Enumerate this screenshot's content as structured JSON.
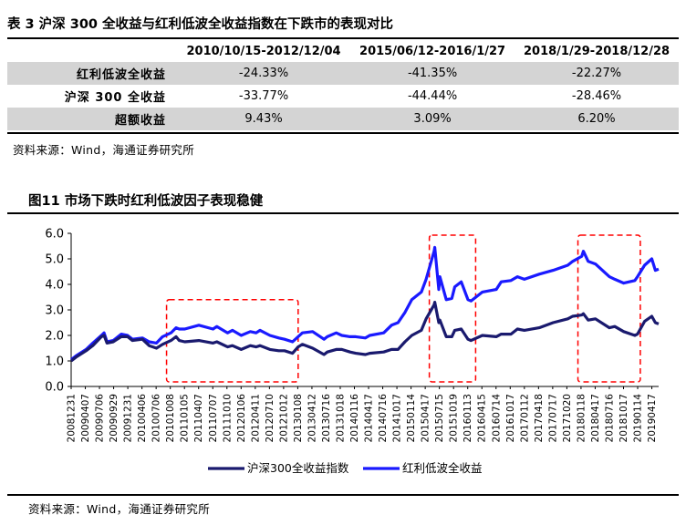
{
  "table": {
    "title": "表 3 沪深 300 全收益与红利低波全收益指数在下跌市的表现对比",
    "headers": [
      "",
      "2010/10/15-2012/12/04",
      "2015/06/12-2016/1/27",
      "2018/1/29-2018/12/28"
    ],
    "rows": [
      {
        "label": "红利低波全收益",
        "values": [
          "-24.33%",
          "-41.35%",
          "-22.27%"
        ]
      },
      {
        "label": "沪深 300 全收益",
        "values": [
          "-33.77%",
          "-44.44%",
          "-28.46%"
        ]
      },
      {
        "label": "超额收益",
        "values": [
          "9.43%",
          "3.09%",
          "6.20%"
        ]
      }
    ],
    "source": "资料来源：Wind，海通证券研究所"
  },
  "figure": {
    "title": "图11 市场下跌时红利低波因子表现稳健",
    "source": "资料来源：Wind，海通证券研究所"
  },
  "chart_data": {
    "type": "line",
    "ylim": [
      0.0,
      6.0
    ],
    "yticks": [
      "0.0",
      "1.0",
      "2.0",
      "3.0",
      "4.0",
      "5.0",
      "6.0"
    ],
    "xticks": [
      "20081231",
      "20090407",
      "20090706",
      "20090929",
      "20091231",
      "20100406",
      "20100706",
      "20101008",
      "20110105",
      "20110407",
      "20110707",
      "20111010",
      "20120106",
      "20120411",
      "20120710",
      "20121012",
      "20130108",
      "20130412",
      "20130716",
      "20131018",
      "20140116",
      "20140417",
      "20140716",
      "20141017",
      "20150114",
      "20150417",
      "20150715",
      "20151019",
      "20160113",
      "20160415",
      "20160714",
      "20161017",
      "20170112",
      "20170418",
      "20170717",
      "20171020",
      "20180118",
      "20180417",
      "20180716",
      "20181017",
      "20190114",
      "20190417"
    ],
    "x_range": [
      "20081231",
      "20190531"
    ],
    "series": [
      {
        "name": "沪深300全收益指数",
        "color": "#1a1a6e",
        "points": [
          [
            "20081231",
            1.0
          ],
          [
            "20090201",
            1.15
          ],
          [
            "20090407",
            1.4
          ],
          [
            "20090520",
            1.6
          ],
          [
            "20090715",
            1.95
          ],
          [
            "20090801",
            2.0
          ],
          [
            "20090820",
            1.7
          ],
          [
            "20090929",
            1.75
          ],
          [
            "20091120",
            1.95
          ],
          [
            "20091231",
            1.95
          ],
          [
            "20100201",
            1.8
          ],
          [
            "20100406",
            1.85
          ],
          [
            "20100520",
            1.6
          ],
          [
            "20100706",
            1.5
          ],
          [
            "20100815",
            1.65
          ],
          [
            "20101008",
            1.8
          ],
          [
            "20101110",
            1.95
          ],
          [
            "20101201",
            1.8
          ],
          [
            "20110105",
            1.75
          ],
          [
            "20110407",
            1.8
          ],
          [
            "20110707",
            1.7
          ],
          [
            "20110801",
            1.75
          ],
          [
            "20111010",
            1.55
          ],
          [
            "20111110",
            1.6
          ],
          [
            "20120106",
            1.45
          ],
          [
            "20120305",
            1.6
          ],
          [
            "20120411",
            1.55
          ],
          [
            "20120507",
            1.6
          ],
          [
            "20120710",
            1.45
          ],
          [
            "20120905",
            1.4
          ],
          [
            "20121012",
            1.4
          ],
          [
            "20121203",
            1.3
          ],
          [
            "20130108",
            1.55
          ],
          [
            "20130205",
            1.65
          ],
          [
            "20130412",
            1.5
          ],
          [
            "20130625",
            1.25
          ],
          [
            "20130716",
            1.35
          ],
          [
            "20130912",
            1.45
          ],
          [
            "20131018",
            1.45
          ],
          [
            "20131210",
            1.35
          ],
          [
            "20140116",
            1.3
          ],
          [
            "20140320",
            1.25
          ],
          [
            "20140417",
            1.3
          ],
          [
            "20140716",
            1.35
          ],
          [
            "20140905",
            1.45
          ],
          [
            "20141017",
            1.45
          ],
          [
            "20141201",
            1.75
          ],
          [
            "20150114",
            2.0
          ],
          [
            "20150317",
            2.2
          ],
          [
            "20150417",
            2.65
          ],
          [
            "20150608",
            3.2
          ],
          [
            "20150612",
            3.3
          ],
          [
            "20150708",
            2.5
          ],
          [
            "20150715",
            2.6
          ],
          [
            "20150825",
            1.95
          ],
          [
            "20150930",
            1.95
          ],
          [
            "20151019",
            2.2
          ],
          [
            "20151130",
            2.25
          ],
          [
            "20160113",
            1.85
          ],
          [
            "20160201",
            1.8
          ],
          [
            "20160415",
            2.0
          ],
          [
            "20160714",
            1.95
          ],
          [
            "20160815",
            2.05
          ],
          [
            "20161017",
            2.05
          ],
          [
            "20161128",
            2.25
          ],
          [
            "20170112",
            2.2
          ],
          [
            "20170418",
            2.3
          ],
          [
            "20170717",
            2.5
          ],
          [
            "20171020",
            2.65
          ],
          [
            "20171120",
            2.75
          ],
          [
            "20180118",
            2.8
          ],
          [
            "20180129",
            2.85
          ],
          [
            "20180301",
            2.6
          ],
          [
            "20180417",
            2.65
          ],
          [
            "20180716",
            2.3
          ],
          [
            "20180820",
            2.35
          ],
          [
            "20181017",
            2.15
          ],
          [
            "20181228",
            2.0
          ],
          [
            "20190114",
            2.05
          ],
          [
            "20190301",
            2.55
          ],
          [
            "20190417",
            2.75
          ],
          [
            "20190510",
            2.5
          ],
          [
            "20190531",
            2.45
          ]
        ]
      },
      {
        "name": "红利低波全收益",
        "color": "#1a1aff",
        "points": [
          [
            "20081231",
            1.05
          ],
          [
            "20090201",
            1.2
          ],
          [
            "20090407",
            1.45
          ],
          [
            "20090520",
            1.7
          ],
          [
            "20090715",
            2.0
          ],
          [
            "20090801",
            2.1
          ],
          [
            "20090820",
            1.75
          ],
          [
            "20090929",
            1.8
          ],
          [
            "20091120",
            2.05
          ],
          [
            "20091231",
            2.0
          ],
          [
            "20100201",
            1.85
          ],
          [
            "20100406",
            1.9
          ],
          [
            "20100520",
            1.75
          ],
          [
            "20100706",
            1.7
          ],
          [
            "20100815",
            1.95
          ],
          [
            "20101008",
            2.1
          ],
          [
            "20101110",
            2.3
          ],
          [
            "20101201",
            2.25
          ],
          [
            "20110105",
            2.25
          ],
          [
            "20110407",
            2.4
          ],
          [
            "20110707",
            2.25
          ],
          [
            "20110801",
            2.35
          ],
          [
            "20111010",
            2.1
          ],
          [
            "20111110",
            2.2
          ],
          [
            "20120106",
            2.0
          ],
          [
            "20120305",
            2.15
          ],
          [
            "20120411",
            2.1
          ],
          [
            "20120507",
            2.2
          ],
          [
            "20120710",
            2.0
          ],
          [
            "20120905",
            1.9
          ],
          [
            "20121012",
            1.85
          ],
          [
            "20121203",
            1.75
          ],
          [
            "20130108",
            1.95
          ],
          [
            "20130205",
            2.1
          ],
          [
            "20130412",
            2.15
          ],
          [
            "20130625",
            1.85
          ],
          [
            "20130716",
            1.95
          ],
          [
            "20130912",
            2.1
          ],
          [
            "20131018",
            2.0
          ],
          [
            "20131210",
            1.95
          ],
          [
            "20140116",
            1.95
          ],
          [
            "20140320",
            1.9
          ],
          [
            "20140417",
            2.0
          ],
          [
            "20140716",
            2.1
          ],
          [
            "20140905",
            2.4
          ],
          [
            "20141017",
            2.5
          ],
          [
            "20141201",
            2.9
          ],
          [
            "20150114",
            3.4
          ],
          [
            "20150317",
            3.7
          ],
          [
            "20150417",
            4.2
          ],
          [
            "20150608",
            5.3
          ],
          [
            "20150612",
            5.45
          ],
          [
            "20150708",
            3.8
          ],
          [
            "20150715",
            4.3
          ],
          [
            "20150825",
            3.4
          ],
          [
            "20150930",
            3.45
          ],
          [
            "20151019",
            3.9
          ],
          [
            "20151130",
            4.1
          ],
          [
            "20160113",
            3.4
          ],
          [
            "20160201",
            3.35
          ],
          [
            "20160415",
            3.7
          ],
          [
            "20160714",
            3.8
          ],
          [
            "20160815",
            4.1
          ],
          [
            "20161017",
            4.15
          ],
          [
            "20161128",
            4.3
          ],
          [
            "20170112",
            4.2
          ],
          [
            "20170418",
            4.4
          ],
          [
            "20170717",
            4.55
          ],
          [
            "20171020",
            4.75
          ],
          [
            "20171120",
            4.9
          ],
          [
            "20180118",
            5.1
          ],
          [
            "20180129",
            5.3
          ],
          [
            "20180301",
            4.9
          ],
          [
            "20180417",
            4.8
          ],
          [
            "20180716",
            4.3
          ],
          [
            "20180820",
            4.2
          ],
          [
            "20181017",
            4.05
          ],
          [
            "20181228",
            4.15
          ],
          [
            "20190114",
            4.3
          ],
          [
            "20190301",
            4.75
          ],
          [
            "20190417",
            5.0
          ],
          [
            "20190510",
            4.55
          ],
          [
            "20190531",
            4.6
          ]
        ]
      }
    ],
    "highlight_periods": [
      {
        "from": "20101015",
        "to": "20121204"
      },
      {
        "from": "20150612",
        "to": "20160127"
      },
      {
        "from": "20180129",
        "to": "20181228"
      }
    ],
    "highlight_color": "#ff0000",
    "legend_position": "bottom"
  }
}
